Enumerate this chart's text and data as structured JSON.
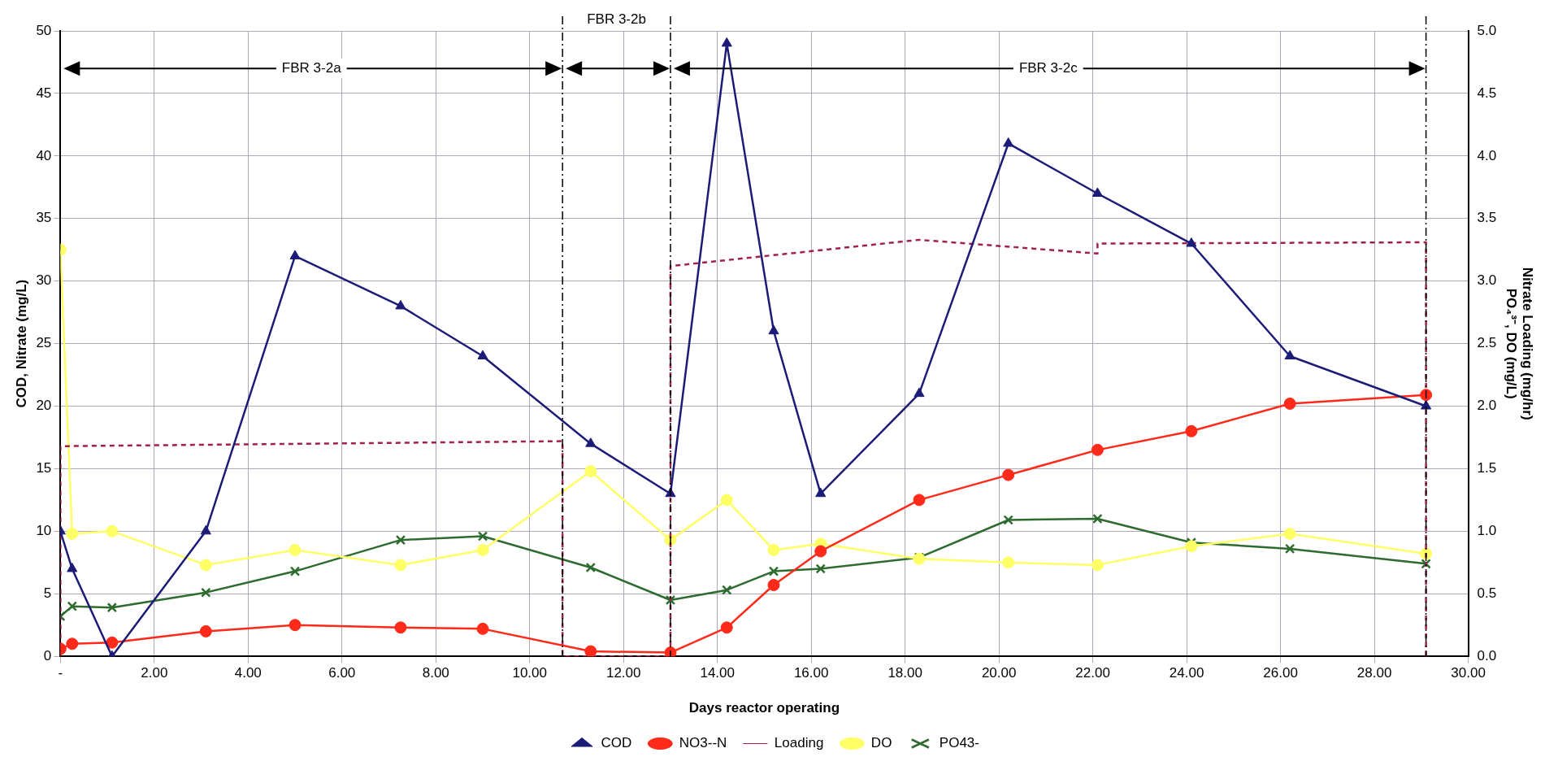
{
  "chart_data": {
    "type": "line",
    "xlabel": "Days reactor operating",
    "ylabel": "COD, Nitrate (mg/L)",
    "y2label": "Nitrate Loading (mg/hr)\nPO₄³⁻, DO (mg/L)",
    "x": [
      0,
      0.25,
      1.1,
      3.1,
      5.0,
      7.25,
      9.0,
      11.3,
      13.0,
      14.2,
      15.2,
      16.2,
      18.3,
      20.2,
      22.1,
      24.1,
      26.2,
      29.1
    ],
    "series": [
      {
        "name": "COD",
        "color": "#1c1c78",
        "marker": "triangle",
        "values": [
          10,
          7,
          0,
          10,
          32,
          28,
          24,
          17,
          13,
          49,
          26,
          13,
          21,
          41,
          37,
          33,
          24,
          20
        ]
      },
      {
        "name": "NO3--N",
        "color": "#ff2a1a",
        "marker": "circle",
        "values": [
          0.6,
          1.0,
          1.1,
          2.0,
          2.5,
          2.3,
          2.2,
          0.4,
          0.3,
          2.3,
          5.7,
          8.4,
          12.5,
          14.5,
          16.5,
          18.0,
          20.2,
          20.9
        ]
      },
      {
        "name": "Loading",
        "color": "#a02050",
        "marker": "none",
        "line_style": "dashed",
        "axis": "y2",
        "x": [
          0,
          0,
          10.7,
          10.7,
          13.0,
          13.0,
          18.3,
          22.1,
          22.1,
          29.1,
          29.1
        ],
        "values": [
          0,
          1.68,
          1.72,
          0,
          0,
          3.12,
          3.33,
          3.22,
          3.3,
          3.31,
          0
        ]
      },
      {
        "name": "DO",
        "color": "#ffff66",
        "marker": "circle",
        "axis": "y2",
        "values": [
          3.25,
          0.98,
          1.0,
          0.73,
          0.85,
          0.73,
          0.85,
          1.48,
          0.93,
          1.25,
          0.85,
          0.9,
          0.78,
          0.75,
          0.73,
          0.88,
          0.98,
          0.82
        ]
      },
      {
        "name": "PO43-",
        "color": "#2e6b2e",
        "marker": "cross",
        "axis": "y2",
        "values": [
          0.32,
          0.4,
          0.39,
          0.51,
          0.68,
          0.93,
          0.96,
          0.71,
          0.45,
          0.53,
          0.68,
          0.7,
          0.79,
          1.09,
          1.1,
          0.91,
          0.86,
          0.74
        ]
      }
    ],
    "xlim": [
      0,
      30
    ],
    "xticks": [
      {
        "value": 0,
        "label": "-"
      },
      {
        "value": 2,
        "label": "2.00"
      },
      {
        "value": 4,
        "label": "4.00"
      },
      {
        "value": 6,
        "label": "6.00"
      },
      {
        "value": 8,
        "label": "8.00"
      },
      {
        "value": 10,
        "label": "10.00"
      },
      {
        "value": 12,
        "label": "12.00"
      },
      {
        "value": 14,
        "label": "14.00"
      },
      {
        "value": 16,
        "label": "16.00"
      },
      {
        "value": 18,
        "label": "18.00"
      },
      {
        "value": 20,
        "label": "20.00"
      },
      {
        "value": 22,
        "label": "22.00"
      },
      {
        "value": 24,
        "label": "24.00"
      },
      {
        "value": 26,
        "label": "26.00"
      },
      {
        "value": 28,
        "label": "28.00"
      },
      {
        "value": 30,
        "label": "30.00"
      }
    ],
    "ylim": [
      0,
      50
    ],
    "yticks": [
      0,
      5,
      10,
      15,
      20,
      25,
      30,
      35,
      40,
      45,
      50
    ],
    "y2lim": [
      0,
      5
    ],
    "y2ticks": [
      {
        "value": 0,
        "label": "0.0"
      },
      {
        "value": 0.5,
        "label": "0.5"
      },
      {
        "value": 1,
        "label": "1.0"
      },
      {
        "value": 1.5,
        "label": "1.5"
      },
      {
        "value": 2,
        "label": "2.0"
      },
      {
        "value": 2.5,
        "label": "2.5"
      },
      {
        "value": 3,
        "label": "3.0"
      },
      {
        "value": 3.5,
        "label": "3.5"
      },
      {
        "value": 4,
        "label": "4.0"
      },
      {
        "value": 4.5,
        "label": "4.5"
      },
      {
        "value": 5,
        "label": "5.0"
      }
    ],
    "ref_lines": [
      {
        "axis": "x",
        "value": 10.7,
        "color": "#000000",
        "line_style": "dashed"
      },
      {
        "axis": "x",
        "value": 13.0,
        "color": "#000000",
        "line_style": "dashed"
      },
      {
        "axis": "x",
        "value": 29.1,
        "color": "#000000",
        "line_style": "dashed"
      }
    ],
    "annotations": [
      "FBR 3-2a",
      "FBR 3-2b",
      "FBR 3-2c"
    ],
    "grid": true,
    "legend": "bottom"
  }
}
